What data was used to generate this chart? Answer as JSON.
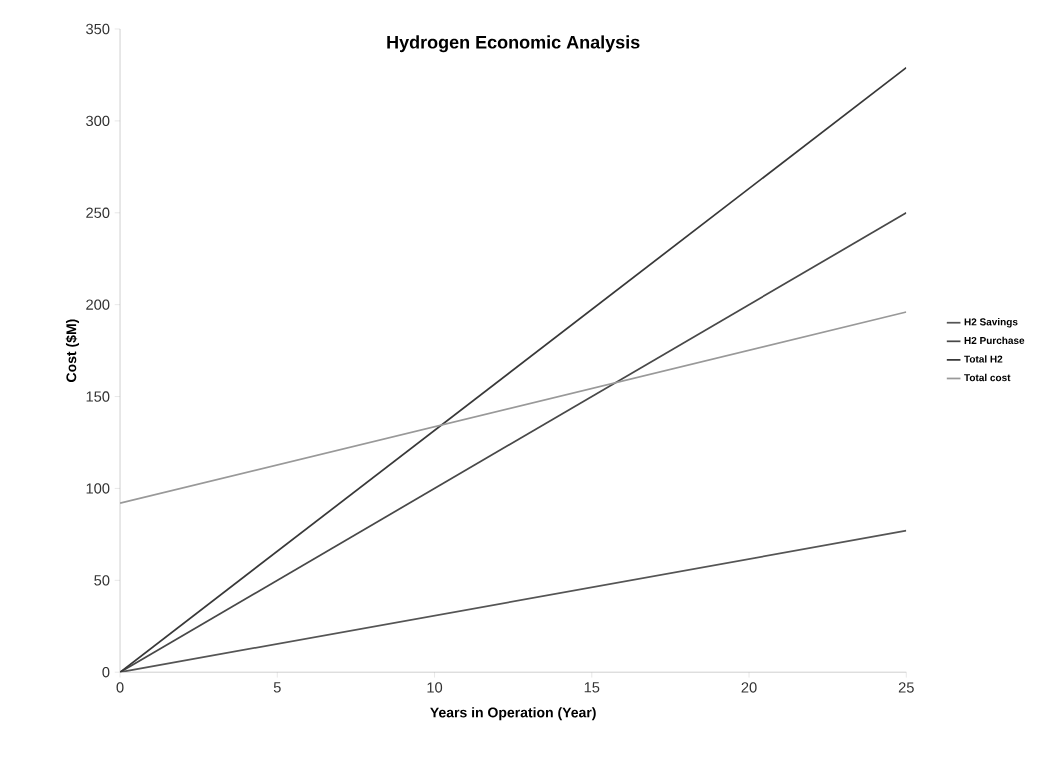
{
  "chart_data": {
    "type": "line",
    "title": "Hydrogen Economic Analysis",
    "xlabel": "Years in Operation (Year)",
    "ylabel": "Cost ($M)",
    "x": [
      0,
      25
    ],
    "series": [
      {
        "name": "H2 Savings",
        "color": "#555555",
        "values": [
          0,
          77
        ]
      },
      {
        "name": "H2 Purchase",
        "color": "#484848",
        "values": [
          0,
          250
        ]
      },
      {
        "name": "Total H2",
        "color": "#383838",
        "values": [
          0,
          329
        ]
      },
      {
        "name": "Total cost",
        "color": "#999999",
        "values": [
          92,
          196
        ]
      }
    ],
    "xlim": [
      0,
      25
    ],
    "xticks": [
      0,
      5,
      10,
      15,
      20,
      25
    ],
    "ylim": [
      0,
      350
    ],
    "yticks": [
      0,
      50,
      100,
      150,
      200,
      250,
      300,
      350
    ],
    "legend": "right",
    "marker": "none",
    "line_style": "solid"
  }
}
